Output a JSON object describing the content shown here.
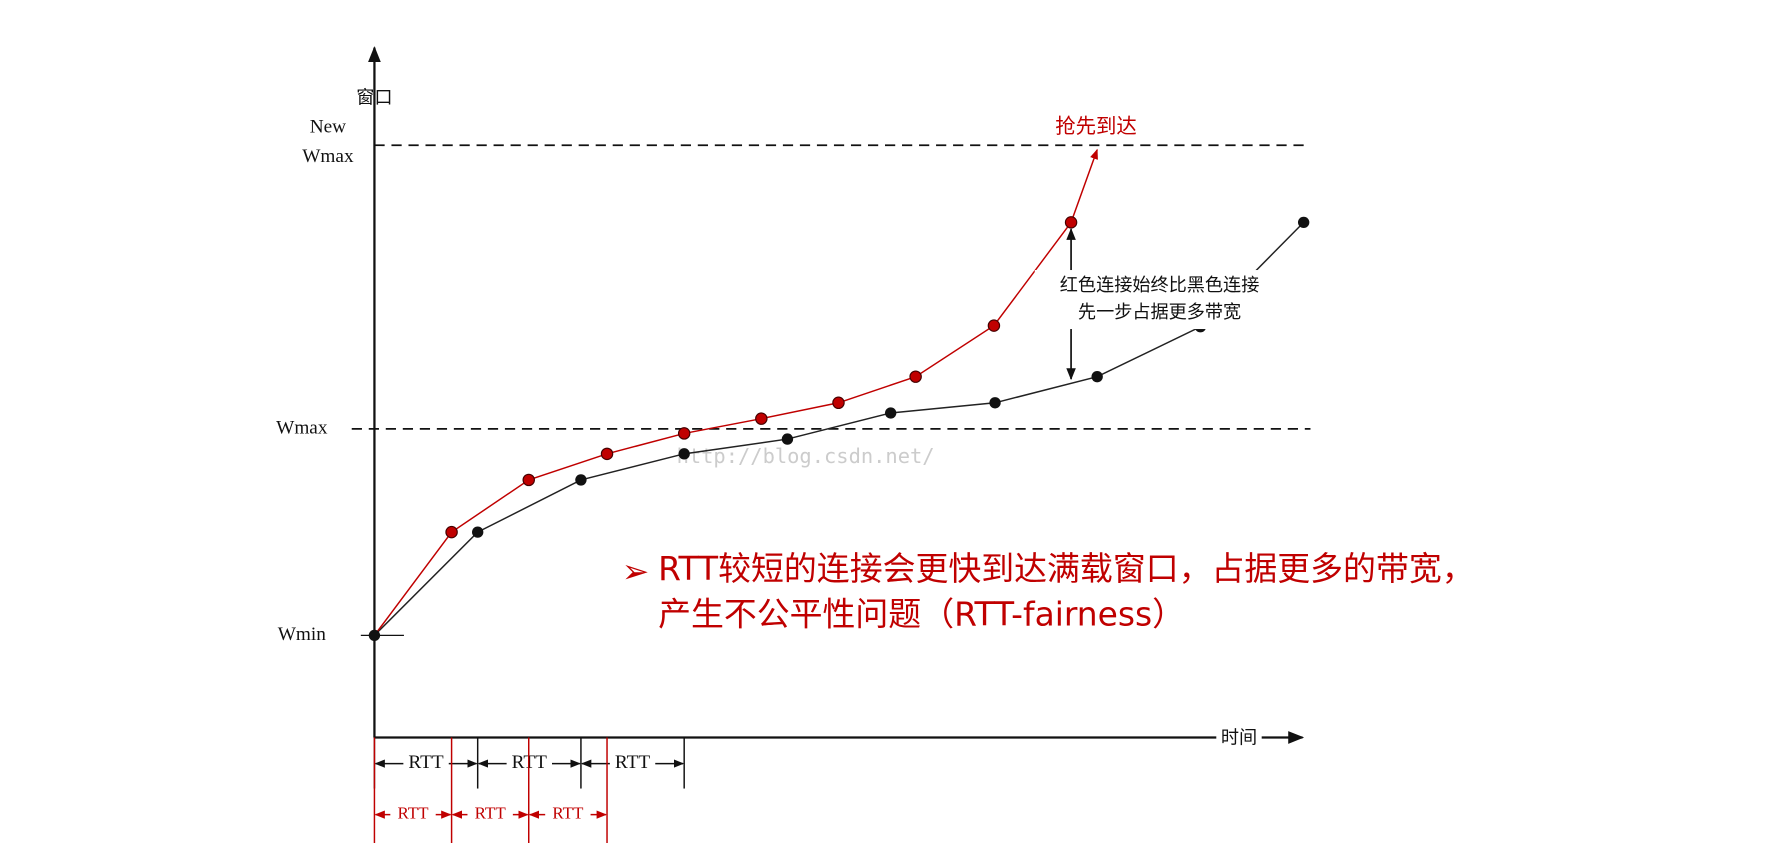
{
  "axis": {
    "y_label": "窗口",
    "x_label": "时间",
    "new_wmax": [
      "New",
      "Wmax"
    ],
    "wmax": "Wmax",
    "wmin": "Wmin"
  },
  "rtt_black": [
    "RTT",
    "RTT",
    "RTT"
  ],
  "rtt_red": [
    "RTT",
    "RTT",
    "RTT"
  ],
  "annotation_top": "抢先到达",
  "annotation_gap": [
    "红色连接始终比黑色连接",
    "先一步占据更多带宽"
  ],
  "watermark": "http://blog.csdn.net/",
  "bullet": [
    "RTT较短的连接会更快到达满载窗口，占据更多的带宽，",
    "产生不公平性问题（RTT-fairness）"
  ]
}
